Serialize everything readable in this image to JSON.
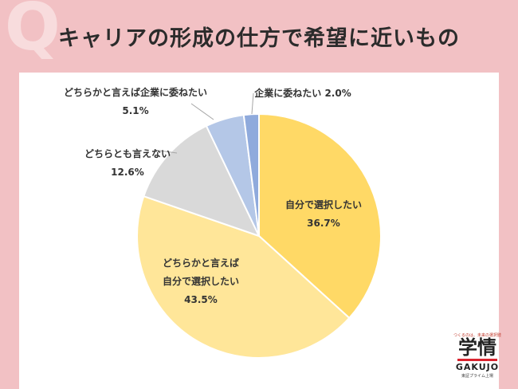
{
  "header": {
    "title": "キャリアの形成の仕方で希望に近いもの"
  },
  "chart_data": {
    "type": "pie",
    "title": "キャリアの形成の仕方で希望に近いもの",
    "slices": [
      {
        "label_lines": [
          "自分で選択したい"
        ],
        "pct_label": "36.7%",
        "value": 36.7,
        "color": "#ffd966"
      },
      {
        "label_lines": [
          "どちらかと言えば",
          "自分で選択したい"
        ],
        "pct_label": "43.5%",
        "value": 43.5,
        "color": "#ffe699"
      },
      {
        "label_lines": [
          "どちらとも言えない"
        ],
        "pct_label": "12.6%",
        "value": 12.6,
        "color": "#d9d9d9"
      },
      {
        "label_lines": [
          "どちらかと言えば企業に委ねたい"
        ],
        "pct_label": "5.1%",
        "value": 5.1,
        "color": "#b4c7e7"
      },
      {
        "label_lines": [
          "企業に委ねたい 2.0%"
        ],
        "pct_label": "",
        "value": 2.0,
        "color": "#8faadc"
      }
    ]
  },
  "logo": {
    "tagline": "つくるのは、未来の選択肢",
    "main": "学情",
    "sub": "GAKUJO",
    "footer": "東証プライム上場"
  }
}
